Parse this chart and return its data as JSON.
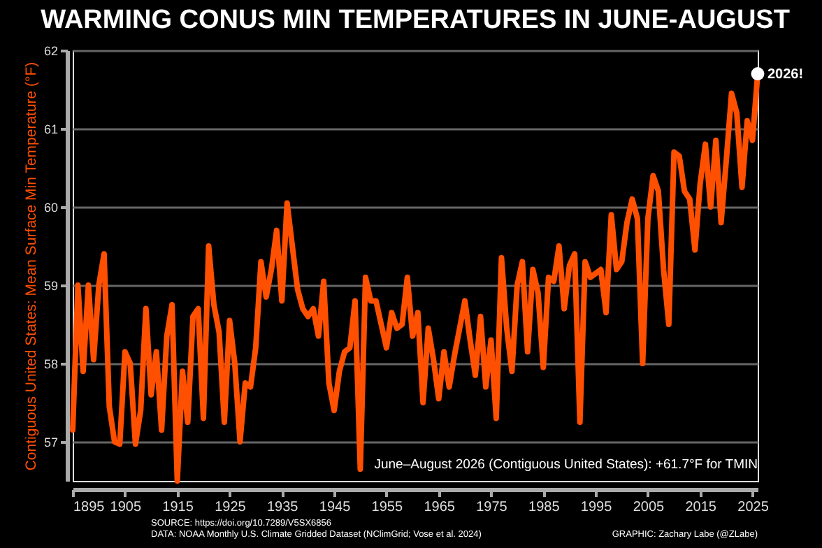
{
  "chart_data": {
    "type": "line",
    "title": "WARMING CONUS MIN TEMPERATURES IN JUNE-AUGUST",
    "ylabel": "Contiguous United States: Mean Surface Min Temperature (°F)",
    "x": [
      1895,
      1896,
      1897,
      1898,
      1899,
      1900,
      1901,
      1902,
      1903,
      1904,
      1905,
      1906,
      1907,
      1908,
      1909,
      1910,
      1911,
      1912,
      1913,
      1914,
      1915,
      1916,
      1917,
      1918,
      1919,
      1920,
      1921,
      1922,
      1923,
      1924,
      1925,
      1926,
      1927,
      1928,
      1929,
      1930,
      1931,
      1932,
      1933,
      1934,
      1935,
      1936,
      1937,
      1938,
      1939,
      1940,
      1941,
      1942,
      1943,
      1944,
      1945,
      1946,
      1947,
      1948,
      1949,
      1950,
      1951,
      1952,
      1953,
      1954,
      1955,
      1956,
      1957,
      1958,
      1959,
      1960,
      1961,
      1962,
      1963,
      1964,
      1965,
      1966,
      1967,
      1968,
      1969,
      1970,
      1971,
      1972,
      1973,
      1974,
      1975,
      1976,
      1977,
      1978,
      1979,
      1980,
      1981,
      1982,
      1983,
      1984,
      1985,
      1986,
      1987,
      1988,
      1989,
      1990,
      1991,
      1992,
      1993,
      1994,
      1995,
      1996,
      1997,
      1998,
      1999,
      2000,
      2001,
      2002,
      2003,
      2004,
      2005,
      2006,
      2007,
      2008,
      2009,
      2010,
      2011,
      2012,
      2013,
      2014,
      2015,
      2016,
      2017,
      2018,
      2019,
      2020,
      2021,
      2022,
      2023,
      2024,
      2025,
      2026
    ],
    "series": [
      {
        "color": "#ff4f00",
        "values": [
          57.15,
          59.0,
          57.9,
          59.0,
          58.05,
          59.0,
          59.4,
          57.45,
          57.0,
          56.97,
          58.15,
          58.0,
          56.97,
          57.4,
          58.7,
          57.6,
          58.15,
          57.15,
          58.35,
          58.75,
          56.5,
          57.9,
          57.25,
          58.6,
          58.7,
          57.3,
          59.5,
          58.75,
          58.4,
          57.25,
          58.55,
          58.0,
          57.0,
          57.75,
          57.7,
          58.2,
          59.3,
          58.85,
          59.2,
          59.7,
          58.8,
          60.05,
          59.5,
          58.95,
          58.7,
          58.6,
          58.7,
          58.35,
          59.05,
          57.75,
          57.4,
          57.9,
          58.15,
          58.2,
          58.8,
          56.65,
          59.1,
          58.8,
          58.8,
          58.5,
          58.2,
          58.65,
          58.45,
          58.5,
          59.1,
          58.35,
          58.65,
          57.5,
          58.45,
          58.05,
          57.55,
          58.15,
          57.7,
          58.1,
          58.45,
          58.8,
          58.3,
          57.85,
          58.6,
          57.7,
          58.3,
          57.3,
          59.35,
          58.45,
          57.9,
          59.0,
          59.3,
          58.15,
          59.2,
          58.9,
          57.95,
          59.1,
          59.05,
          59.5,
          58.7,
          59.25,
          59.4,
          57.25,
          59.3,
          59.1,
          59.15,
          59.2,
          58.65,
          59.9,
          59.2,
          59.3,
          59.8,
          60.1,
          59.85,
          58.0,
          59.85,
          60.4,
          60.2,
          59.2,
          58.5,
          60.7,
          60.65,
          60.2,
          60.1,
          59.45,
          60.3,
          60.8,
          60.0,
          60.85,
          59.8,
          60.6,
          61.45,
          61.2,
          60.25,
          61.1,
          60.85,
          61.7
        ]
      },
      {
        "type": "scatter",
        "color": "#ffffff",
        "x": [
          2026
        ],
        "values": [
          61.7
        ]
      }
    ],
    "xlim": [
      1895,
      2026
    ],
    "xticks": [
      1895,
      1905,
      1915,
      1925,
      1935,
      1945,
      1955,
      1965,
      1975,
      1985,
      1995,
      2005,
      2015,
      2025
    ],
    "ylim": [
      56.5,
      62
    ],
    "yticks": [
      57,
      58,
      59,
      60,
      61,
      62
    ],
    "grid": "y",
    "line_style": "solid",
    "annotations": [
      {
        "text": "2026!",
        "x": 2026,
        "y": 61.7
      },
      "June–August 2026 (Contiguous United States): +61.7°F for TMIN",
      "SOURCE: https://doi.org/10.7289/V5SX6856",
      "DATA: NOAA Monthly U.S. Climate Gridded Dataset (NClimGrid; Vose et al. 2024)",
      "GRAPHIC: Zachary Labe (@ZLabe)"
    ]
  }
}
